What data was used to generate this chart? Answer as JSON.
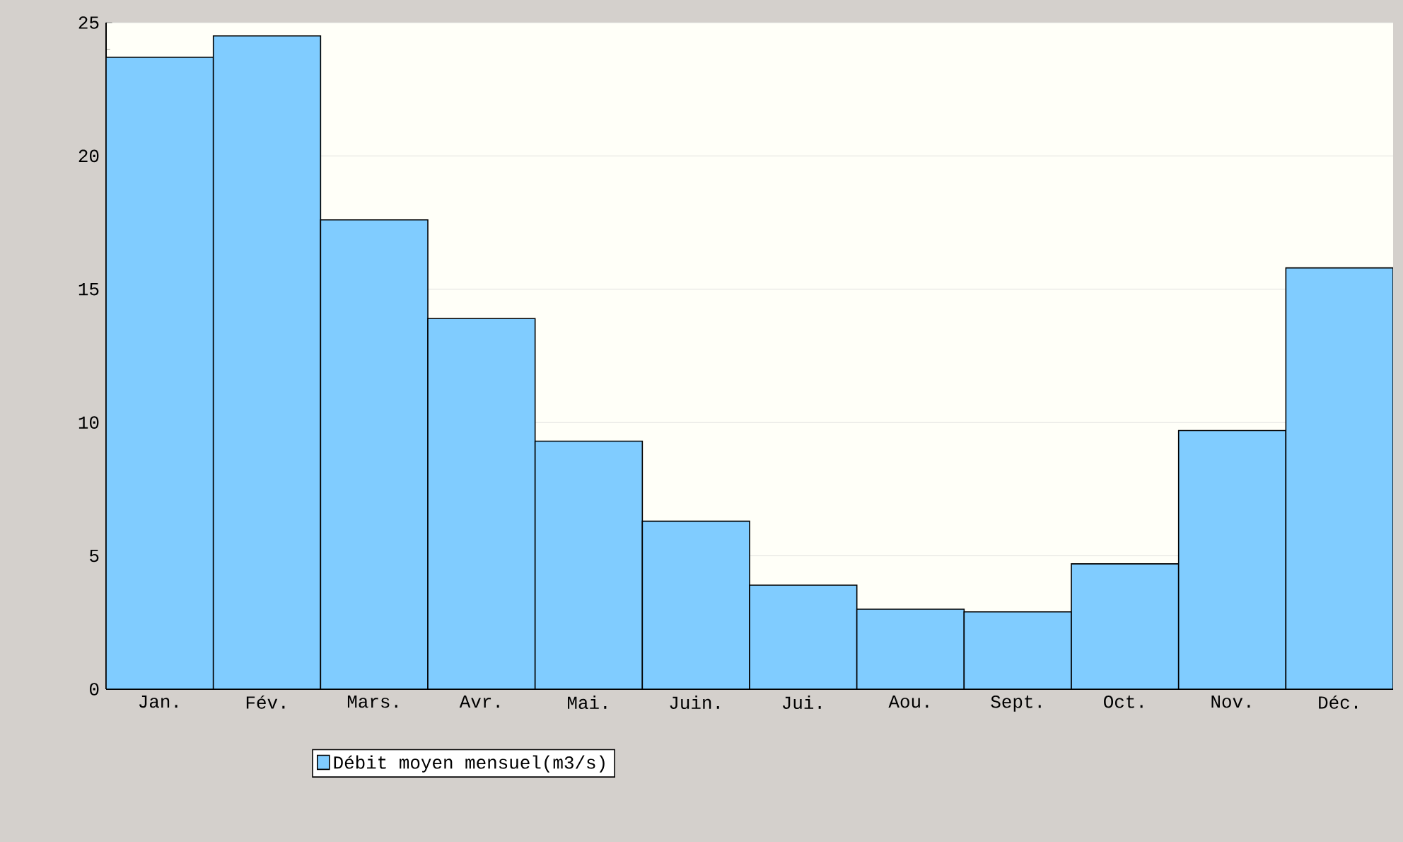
{
  "chart_data": {
    "type": "bar",
    "categories": [
      "Jan.",
      "Fév.",
      "Mars.",
      "Avr.",
      "Mai.",
      "Juin.",
      "Jui.",
      "Aou.",
      "Sept.",
      "Oct.",
      "Nov.",
      "Déc."
    ],
    "series": [
      {
        "name": "Débit moyen mensuel(m3/s)",
        "color": "#80ccff",
        "values": [
          23.7,
          24.5,
          17.6,
          13.9,
          9.3,
          6.3,
          3.9,
          3.0,
          2.9,
          4.7,
          9.7,
          15.8
        ]
      }
    ],
    "ylim": [
      0,
      25
    ],
    "yticks": [
      0,
      5,
      10,
      15,
      20,
      25
    ],
    "grid": "y",
    "legend": "bottom"
  }
}
